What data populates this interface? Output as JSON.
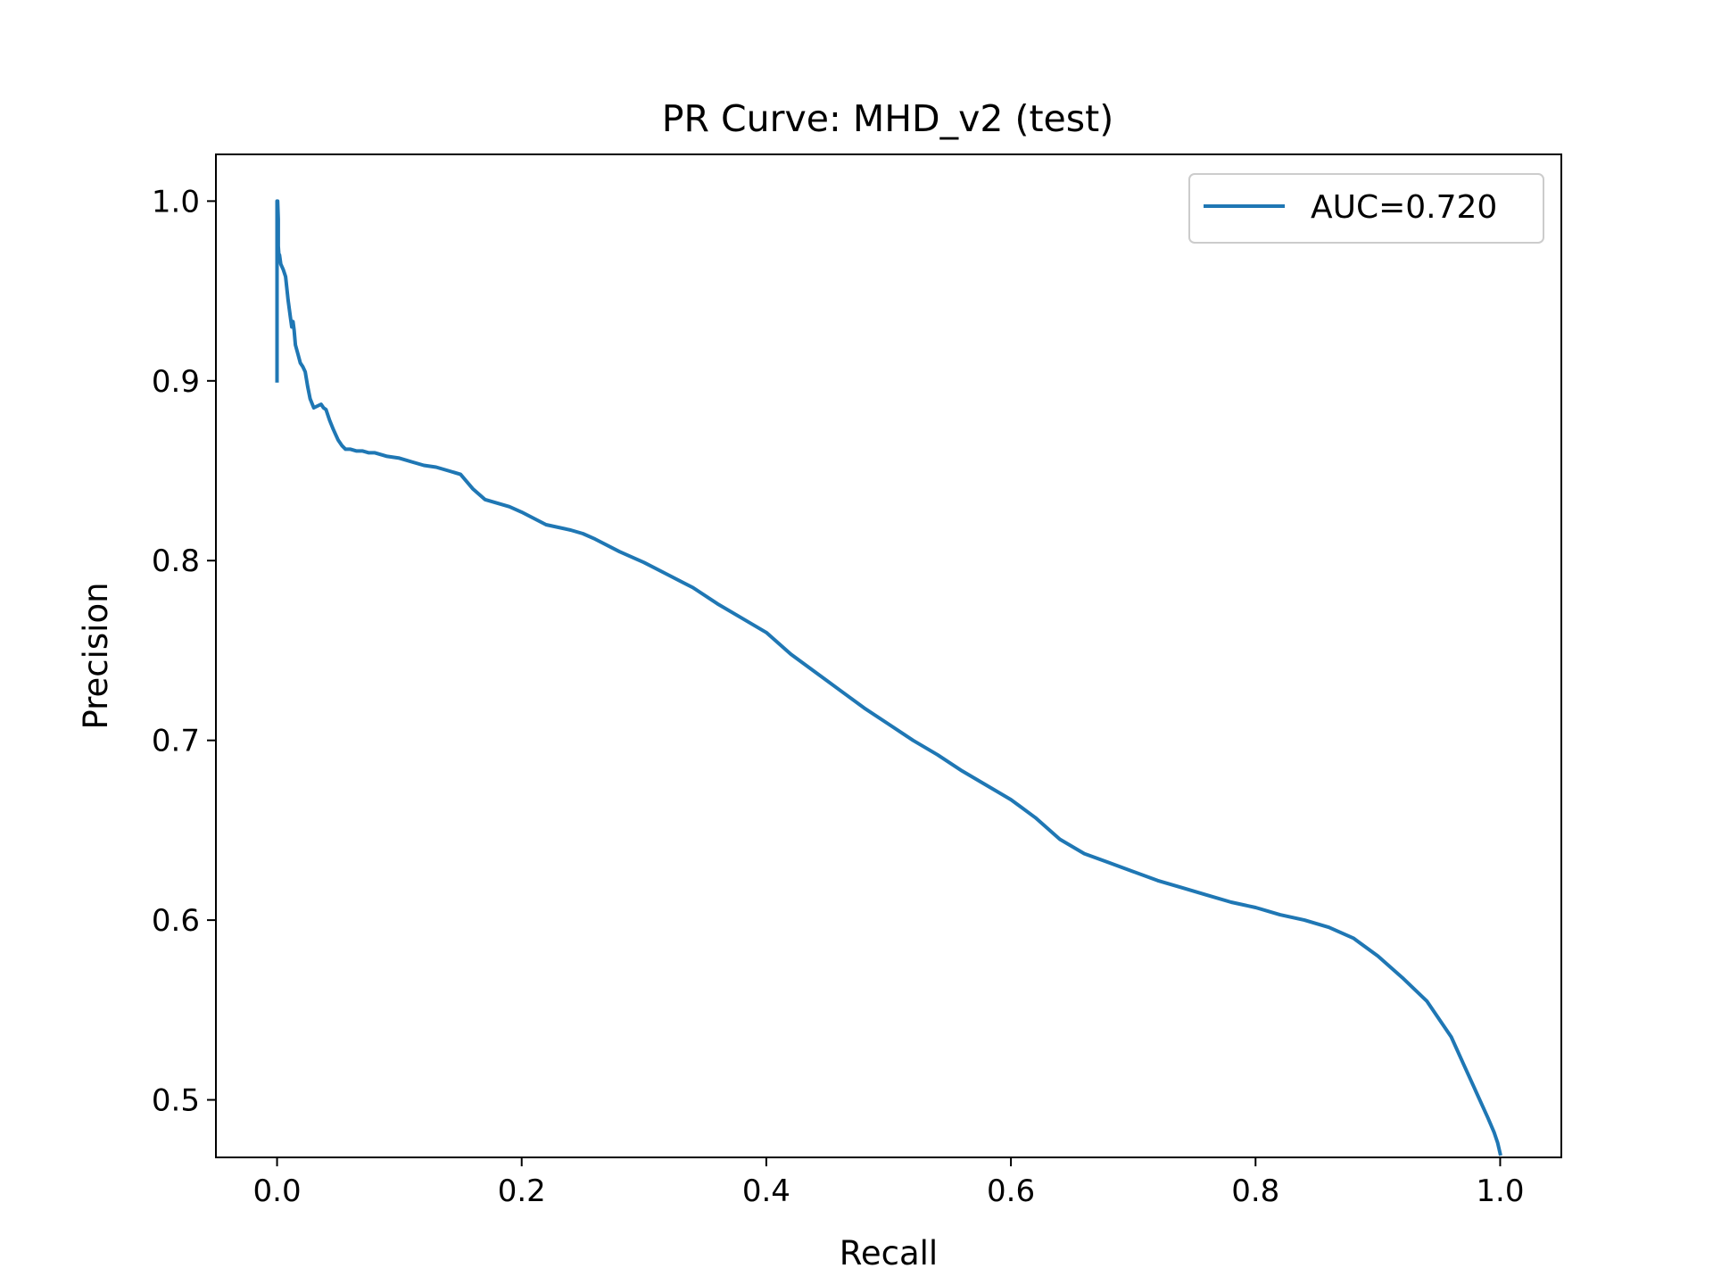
{
  "chart_data": {
    "type": "line",
    "title": "PR Curve: MHD_v2 (test)",
    "xlabel": "Recall",
    "ylabel": "Precision",
    "xlim": [
      -0.05,
      1.05
    ],
    "ylim": [
      0.468,
      1.026
    ],
    "grid": false,
    "legend_position": "top-right",
    "x_ticks": [
      0.0,
      0.2,
      0.4,
      0.6,
      0.8,
      1.0
    ],
    "x_tick_labels": [
      "0.0",
      "0.2",
      "0.4",
      "0.6",
      "0.8",
      "1.0"
    ],
    "y_ticks": [
      0.5,
      0.6,
      0.7,
      0.8,
      0.9,
      1.0
    ],
    "y_tick_labels": [
      "0.5",
      "0.6",
      "0.7",
      "0.8",
      "0.9",
      "1.0"
    ],
    "series": [
      {
        "name": "AUC=0.720",
        "color": "#1f77b4",
        "x": [
          0.0,
          0.0,
          0.0005,
          0.001,
          0.001,
          0.0015,
          0.002,
          0.003,
          0.005,
          0.007,
          0.009,
          0.011,
          0.012,
          0.013,
          0.014,
          0.015,
          0.017,
          0.019,
          0.021,
          0.023,
          0.025,
          0.027,
          0.03,
          0.033,
          0.036,
          0.038,
          0.04,
          0.043,
          0.046,
          0.048,
          0.05,
          0.053,
          0.056,
          0.06,
          0.065,
          0.07,
          0.075,
          0.08,
          0.09,
          0.1,
          0.11,
          0.12,
          0.13,
          0.14,
          0.15,
          0.16,
          0.17,
          0.18,
          0.19,
          0.2,
          0.22,
          0.24,
          0.25,
          0.26,
          0.28,
          0.3,
          0.32,
          0.34,
          0.36,
          0.38,
          0.4,
          0.42,
          0.44,
          0.46,
          0.48,
          0.5,
          0.52,
          0.54,
          0.56,
          0.58,
          0.6,
          0.62,
          0.64,
          0.66,
          0.68,
          0.7,
          0.72,
          0.74,
          0.76,
          0.78,
          0.8,
          0.82,
          0.84,
          0.86,
          0.88,
          0.9,
          0.92,
          0.94,
          0.96,
          0.97,
          0.98,
          0.99,
          0.995,
          0.998,
          1.0
        ],
        "y": [
          0.9,
          1.0,
          1.0,
          0.99,
          0.975,
          0.97,
          0.97,
          0.965,
          0.962,
          0.958,
          0.945,
          0.935,
          0.93,
          0.933,
          0.928,
          0.92,
          0.915,
          0.91,
          0.908,
          0.905,
          0.897,
          0.89,
          0.885,
          0.886,
          0.887,
          0.885,
          0.884,
          0.878,
          0.873,
          0.87,
          0.867,
          0.864,
          0.862,
          0.862,
          0.861,
          0.861,
          0.86,
          0.86,
          0.858,
          0.857,
          0.855,
          0.853,
          0.852,
          0.85,
          0.848,
          0.84,
          0.834,
          0.832,
          0.83,
          0.827,
          0.82,
          0.817,
          0.815,
          0.812,
          0.805,
          0.799,
          0.792,
          0.785,
          0.776,
          0.768,
          0.76,
          0.748,
          0.738,
          0.728,
          0.718,
          0.709,
          0.7,
          0.692,
          0.683,
          0.675,
          0.667,
          0.657,
          0.645,
          0.637,
          0.632,
          0.627,
          0.622,
          0.618,
          0.614,
          0.61,
          0.607,
          0.603,
          0.6,
          0.596,
          0.59,
          0.58,
          0.568,
          0.555,
          0.535,
          0.52,
          0.505,
          0.49,
          0.482,
          0.476,
          0.47
        ]
      }
    ]
  }
}
